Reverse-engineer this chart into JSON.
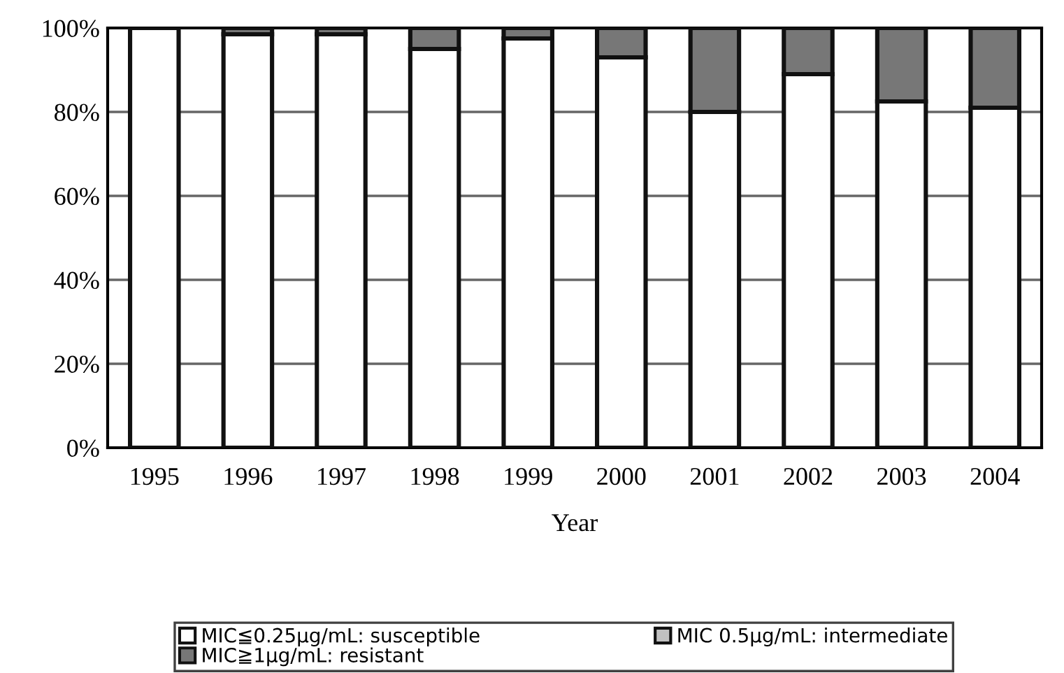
{
  "chart_data": {
    "type": "bar",
    "stacked": true,
    "xlabel": "Year",
    "categories": [
      "1995",
      "1996",
      "1997",
      "1998",
      "1999",
      "2000",
      "2001",
      "2002",
      "2003",
      "2004"
    ],
    "series": [
      {
        "name": "MIC≦0.25μg/mL: susceptible",
        "color": "#ffffff",
        "values": [
          100,
          98.5,
          98.5,
          95,
          97.5,
          93,
          80,
          89,
          82.5,
          81
        ]
      },
      {
        "name": "MIC 0.5μg/mL: intermediate",
        "color": "#c0c0c0",
        "values": [
          0,
          0,
          0,
          0,
          0,
          0,
          0,
          0,
          0,
          0
        ]
      },
      {
        "name": "MIC≧1μg/mL: resistant",
        "color": "#777777",
        "values": [
          0,
          1.5,
          1.5,
          5,
          2.5,
          7,
          20,
          11,
          17.5,
          19
        ]
      }
    ],
    "ylim": [
      0,
      100
    ],
    "yticks": [
      {
        "value": 0,
        "label": "0%"
      },
      {
        "value": 20,
        "label": "20%"
      },
      {
        "value": 40,
        "label": "40%"
      },
      {
        "value": 60,
        "label": "60%"
      },
      {
        "value": 80,
        "label": "80%"
      },
      {
        "value": 100,
        "label": "100%"
      }
    ],
    "grid": "y",
    "legend": "bottom"
  }
}
